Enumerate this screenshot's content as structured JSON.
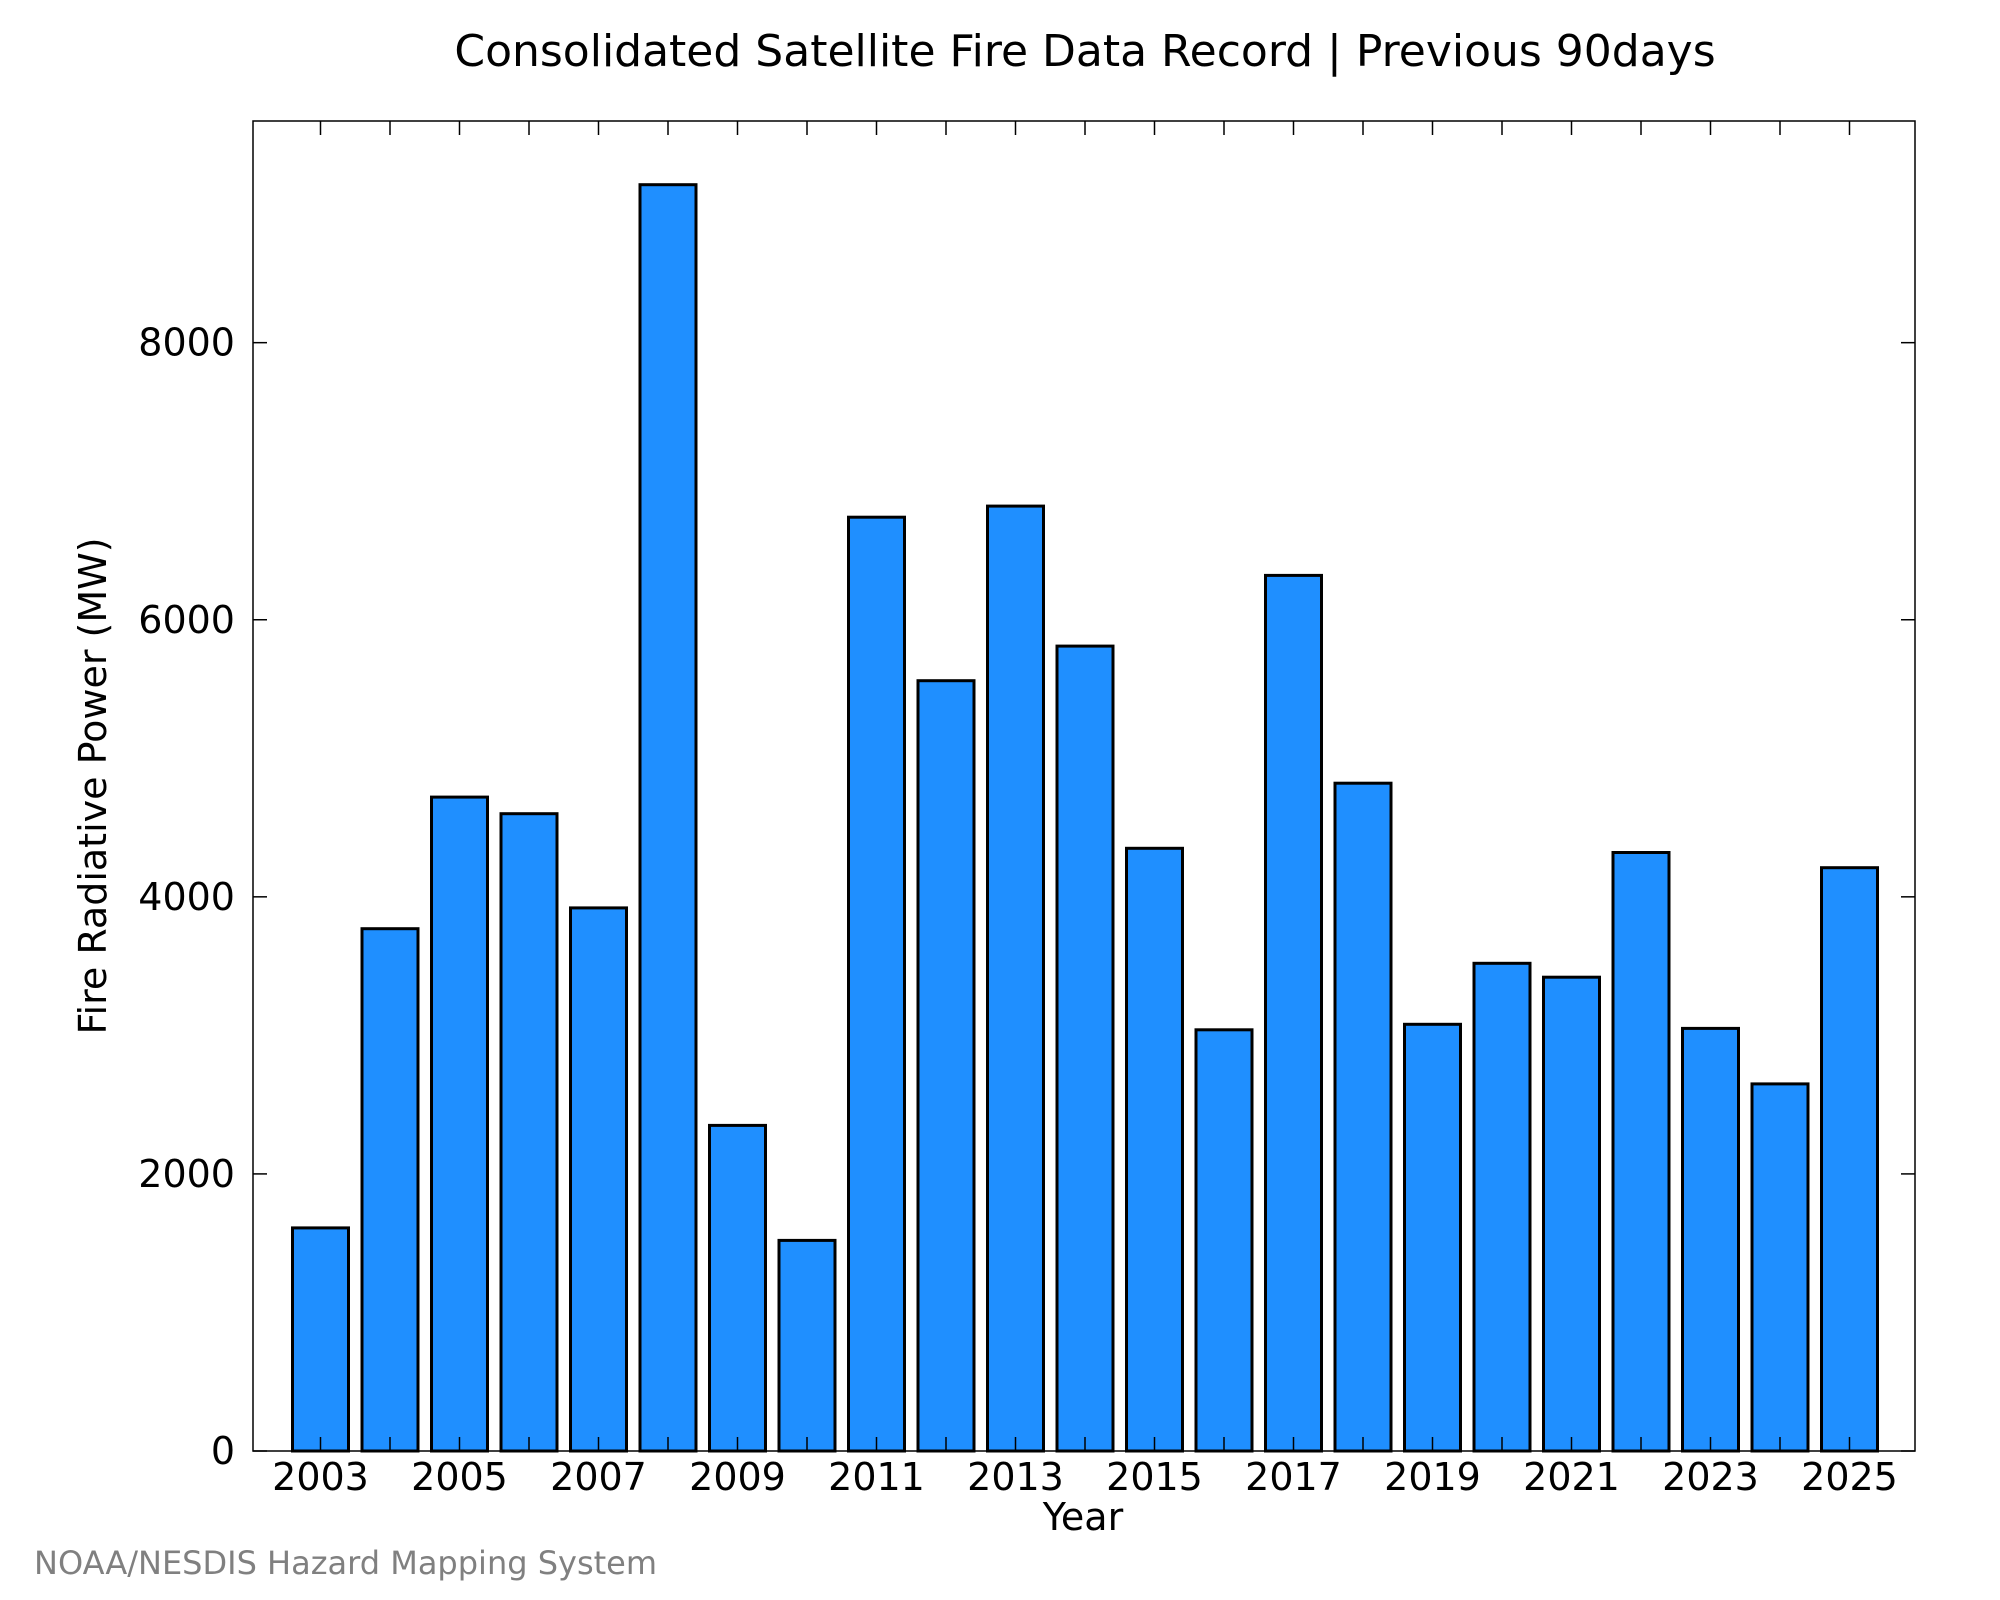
{
  "chart_data": {
    "type": "bar",
    "title": "Consolidated Satellite Fire Data Record | Previous 90days",
    "xlabel": "Year",
    "ylabel": "Fire Radiative Power (MW)",
    "categories": [
      "2003",
      "2004",
      "2005",
      "2006",
      "2007",
      "2008",
      "2009",
      "2010",
      "2011",
      "2012",
      "2013",
      "2014",
      "2015",
      "2016",
      "2017",
      "2018",
      "2019",
      "2020",
      "2021",
      "2022",
      "2023",
      "2024",
      "2025"
    ],
    "values": [
      1610,
      3770,
      4720,
      4600,
      3920,
      9140,
      2350,
      1520,
      6740,
      5560,
      6820,
      5810,
      4350,
      3040,
      6320,
      4820,
      3080,
      3520,
      3420,
      4320,
      3050,
      2650,
      4210
    ],
    "x_tick_labels": [
      "2003",
      "2005",
      "2007",
      "2009",
      "2011",
      "2013",
      "2015",
      "2017",
      "2019",
      "2021",
      "2023",
      "2025"
    ],
    "y_ticks": [
      0,
      2000,
      4000,
      6000,
      8000
    ],
    "y_tick_labels": [
      "0",
      "2000",
      "4000",
      "6000",
      "8000"
    ],
    "ylim": [
      0,
      9600
    ],
    "grid": false,
    "colors": {
      "bar_fill": "#1f8fff",
      "bar_stroke": "#000000",
      "axis": "#000000"
    }
  },
  "credit": {
    "text": "NOAA/NESDIS Hazard Mapping System",
    "color": "#808080"
  }
}
